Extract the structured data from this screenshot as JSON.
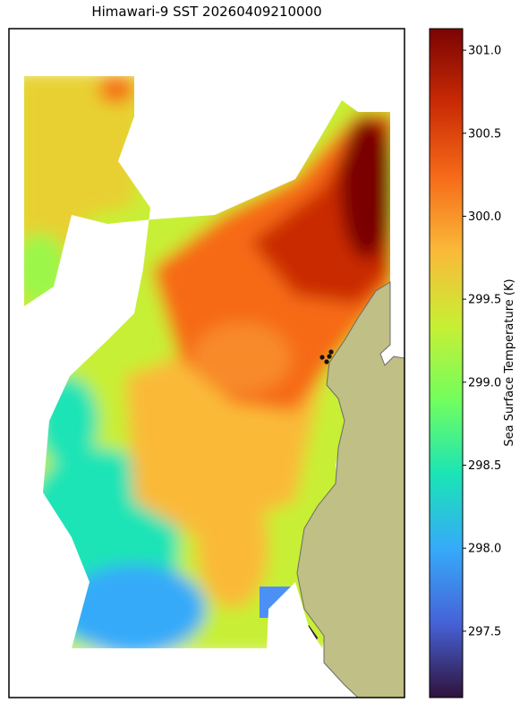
{
  "chart_data": {
    "type": "map",
    "title": "Himawari-9 SST 20260409210000",
    "colorbar_label": "Sea Surface Temperature (K)",
    "clim": [
      297.1,
      301.13
    ],
    "cticks": [
      297.5,
      {
        "value": 298,
        "label": "298.0"
      },
      298.5,
      {
        "value": 299,
        "label": "299.0"
      },
      299.5,
      {
        "value": 300,
        "label": "300.0"
      },
      300.5,
      {
        "value": 301,
        "label": "301.0"
      }
    ],
    "colormap": [
      "#30123b",
      "#4662d7",
      "#36aaf9",
      "#1ae4b6",
      "#72fe5e",
      "#c7ef34",
      "#faba39",
      "#f66b19",
      "#ca2a04",
      "#7a0403"
    ],
    "land_color": "#bfbf86"
  }
}
